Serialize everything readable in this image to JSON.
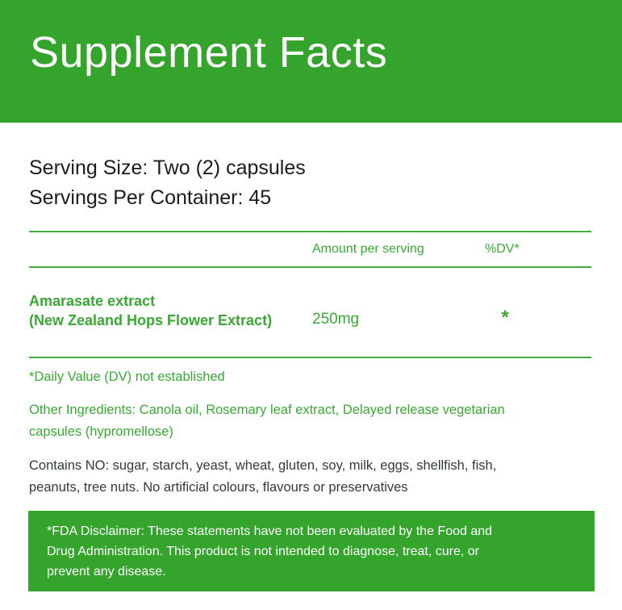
{
  "label": {
    "title": "Supplement Facts",
    "serving": {
      "size_line": "Serving Size: Two (2) capsules",
      "container_line": "Servings Per Container: 45"
    },
    "table": {
      "columns": {
        "amount": "Amount per serving",
        "dv": "%DV*"
      },
      "rows": [
        {
          "name_line1": "Amarasate extract",
          "name_line2": "(New Zealand Hops Flower Extract)",
          "amount": "250mg",
          "dv": "*"
        }
      ],
      "footnote": "*Daily Value (DV) not established"
    },
    "other_ingredients": {
      "line1": "Other Ingredients: Canola oil, Rosemary leaf extract, Delayed release vegetarian",
      "line2": "capsules (hypromellose)"
    },
    "contains": {
      "line1": "Contains NO: sugar, starch, yeast, wheat, gluten, soy, milk, eggs, shellfish, fish,",
      "line2": "peanuts, tree nuts. No artificial colours, flavours or preservatives"
    },
    "fda_disclaimer": {
      "line1": "*FDA Disclaimer: These statements have not been evaluated by the Food and",
      "line2": "Drug Administration. This product is not intended to diagnose, treat, cure, or",
      "line3": "prevent any disease."
    }
  },
  "colors": {
    "banner_green": "#34a42c",
    "text_green": "#3aa834",
    "rule_green": "#45ac3e",
    "dark_text": "#1c1c1a",
    "contains_text": "#323b38",
    "white": "#ffffff"
  }
}
